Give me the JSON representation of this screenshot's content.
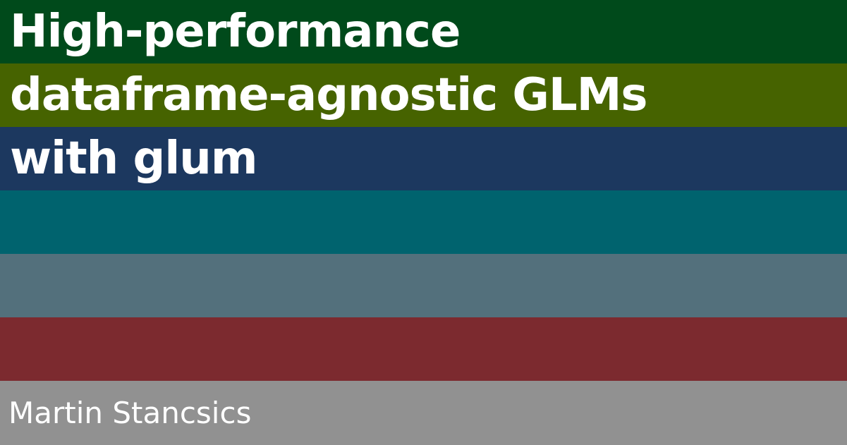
{
  "title": {
    "lines": [
      "High-performance",
      "dataframe-agnostic GLMs",
      "with glum"
    ]
  },
  "author": "Martin Stancsics",
  "colors": {
    "stripes": [
      "#004a1b",
      "#466300",
      "#1c385f",
      "#00636e",
      "#53707c",
      "#7c2a2f",
      "#919191"
    ],
    "text": "#ffffff"
  }
}
